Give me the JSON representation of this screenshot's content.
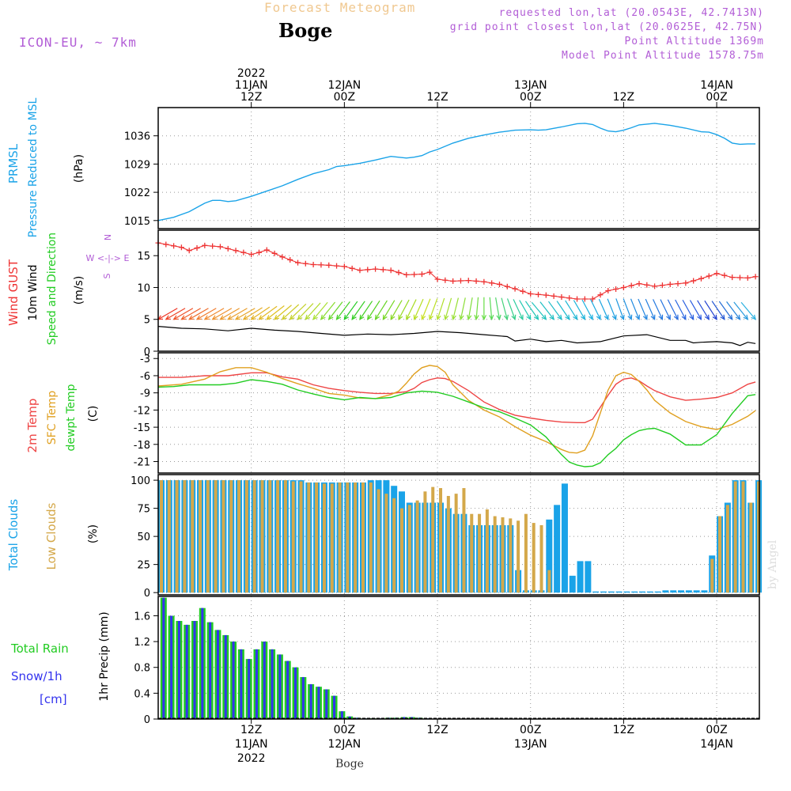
{
  "header": {
    "forecast_title": "Forecast Meteogram",
    "location": "Boge",
    "model": "ICON-EU, ~ 7km",
    "requested": "requested lon,lat (20.0543E, 42.7413N)",
    "grid_point": "grid point closest lon,lat (20.0625E, 42.75N)",
    "point_altitude": "Point Altitude 1369m",
    "model_altitude": "Model Point Altitude 1578.75m",
    "credit": "by Angel",
    "footer_location": "Boge"
  },
  "colors": {
    "pressure": "#1aa3e8",
    "gust": "#ee3333",
    "wind": "#000000",
    "temp": "#ee4444",
    "sfc": "#e0a020",
    "dewpt": "#22cc22",
    "cloud_total": "#1aa3e8",
    "cloud_low": "#d4a84a",
    "rain": "#22cc22",
    "snow": "#3333ee",
    "label_purple": "#b25dd6"
  },
  "time_axis": {
    "top_labels": [
      {
        "h": 12,
        "lines": [
          "2022",
          "11JAN",
          "12Z"
        ]
      },
      {
        "h": 24,
        "lines": [
          "12JAN",
          "00Z"
        ]
      },
      {
        "h": 36,
        "lines": [
          "12Z"
        ]
      },
      {
        "h": 48,
        "lines": [
          "13JAN",
          "00Z"
        ]
      },
      {
        "h": 60,
        "lines": [
          "12Z"
        ]
      },
      {
        "h": 72,
        "lines": [
          "14JAN",
          "00Z"
        ]
      }
    ],
    "bottom_labels": [
      {
        "h": 12,
        "lines": [
          "12Z",
          "11JAN",
          "2022"
        ]
      },
      {
        "h": 24,
        "lines": [
          "00Z",
          "12JAN"
        ]
      },
      {
        "h": 36,
        "lines": [
          "12Z"
        ]
      },
      {
        "h": 48,
        "lines": [
          "00Z",
          "13JAN"
        ]
      },
      {
        "h": 60,
        "lines": [
          "12Z"
        ]
      },
      {
        "h": 72,
        "lines": [
          "00Z",
          "14JAN"
        ]
      }
    ]
  },
  "panel_labels": {
    "pressure": {
      "l1": "PRMSL",
      "l2": "Pressure Reduced to MSL",
      "unit": "(hPa)"
    },
    "wind": {
      "l1": "Wind GUST",
      "l2": "10m Wind",
      "l3": "Speed and Direction",
      "unit": "(m/s)",
      "compass_n": "N",
      "compass_we": "W <-|-> E",
      "compass_s": "S"
    },
    "temp": {
      "l1": "2m Temp",
      "l2": "SFC Temp",
      "l3": "dewpt Temp",
      "unit": "(C)"
    },
    "clouds": {
      "l1": "Total Clouds",
      "l2": "Low Clouds",
      "unit": "(%)"
    },
    "precip": {
      "l1": "Total  Rain",
      "l2": "Snow/1h",
      "l3": "[cm]",
      "unit": "1hr Precip (mm)"
    }
  },
  "chart_data": [
    {
      "type": "line",
      "title": "PRMSL Pressure Reduced to MSL",
      "ylabel": "(hPa)",
      "x_unit": "hours from 2022-01-11 00Z",
      "ylim": [
        1013,
        1043
      ],
      "yticks": [
        1015,
        1022,
        1029,
        1036
      ],
      "grid": true,
      "series": [
        {
          "name": "PRMSL",
          "x": [
            0,
            2,
            4,
            6,
            7,
            8,
            9,
            10,
            12,
            14,
            16,
            18,
            20,
            22,
            23,
            24,
            26,
            28,
            30,
            32,
            33,
            34,
            35,
            36,
            38,
            40,
            42,
            44,
            46,
            48,
            49,
            50,
            52,
            54,
            55,
            56,
            57,
            58,
            59,
            60,
            61,
            62,
            64,
            66,
            68,
            70,
            71,
            72,
            73,
            74,
            75,
            76,
            77
          ],
          "values": [
            1015,
            1015.8,
            1017.2,
            1019.3,
            1020,
            1020,
            1019.7,
            1019.9,
            1021,
            1022.3,
            1023.6,
            1025.2,
            1026.6,
            1027.6,
            1028.4,
            1028.6,
            1029.2,
            1030,
            1030.9,
            1030.5,
            1030.7,
            1031.1,
            1032,
            1032.6,
            1034.2,
            1035.4,
            1036.2,
            1036.9,
            1037.4,
            1037.5,
            1037.4,
            1037.5,
            1038.2,
            1039,
            1039.1,
            1038.8,
            1037.9,
            1037.2,
            1037,
            1037.4,
            1038,
            1038.7,
            1039.1,
            1038.6,
            1037.9,
            1037,
            1036.9,
            1036.3,
            1035.4,
            1034.2,
            1033.9,
            1034,
            1034
          ]
        }
      ]
    },
    {
      "type": "line",
      "title": "Wind GUST / 10m Wind Speed and Direction",
      "ylabel": "(m/s)",
      "ylim": [
        0,
        19
      ],
      "yticks": [
        0,
        5,
        10,
        15
      ],
      "grid": true,
      "series": [
        {
          "name": "Wind GUST",
          "marker": "+",
          "x": [
            0,
            3,
            4,
            6,
            8,
            10,
            12,
            13,
            14,
            16,
            18,
            20,
            22,
            24,
            26,
            28,
            30,
            32,
            34,
            35,
            36,
            38,
            40,
            42,
            44,
            46,
            48,
            50,
            52,
            54,
            56,
            58,
            60,
            62,
            64,
            66,
            68,
            70,
            72,
            74,
            76,
            77
          ],
          "values": [
            17,
            16.3,
            15.8,
            16.6,
            16.4,
            15.8,
            15.2,
            15.5,
            15.9,
            14.8,
            13.9,
            13.6,
            13.5,
            13.3,
            12.7,
            12.9,
            12.7,
            12,
            12.1,
            12.4,
            11.3,
            11,
            11.1,
            10.9,
            10.5,
            9.8,
            9,
            8.8,
            8.5,
            8.2,
            8.2,
            9.5,
            10,
            10.6,
            10.2,
            10.5,
            10.7,
            11.4,
            12.2,
            11.6,
            11.5,
            11.7
          ]
        },
        {
          "name": "10m Wind",
          "x": [
            0,
            3,
            6,
            9,
            12,
            15,
            18,
            21,
            24,
            27,
            30,
            33,
            36,
            39,
            42,
            45,
            46,
            48,
            50,
            52,
            54,
            57,
            60,
            63,
            66,
            68,
            69,
            70,
            72,
            74,
            75,
            76,
            77
          ],
          "values": [
            3.9,
            3.6,
            3.5,
            3.2,
            3.6,
            3.3,
            3.1,
            2.8,
            2.5,
            2.7,
            2.6,
            2.8,
            3.1,
            2.9,
            2.6,
            2.3,
            1.6,
            1.9,
            1.5,
            1.7,
            1.3,
            1.5,
            2.4,
            2.6,
            1.7,
            1.7,
            1.3,
            1.4,
            1.5,
            1.3,
            0.9,
            1.4,
            1.2
          ]
        }
      ],
      "wind_barbs": {
        "speed_value": 5,
        "x_from": 0,
        "x_to": 77,
        "step_hours": 1,
        "angle_keyframes": [
          [
            0,
            60
          ],
          [
            10,
            60
          ],
          [
            20,
            40
          ],
          [
            30,
            30
          ],
          [
            40,
            10
          ],
          [
            50,
            -40
          ],
          [
            60,
            -20
          ],
          [
            70,
            -30
          ],
          [
            77,
            -40
          ]
        ],
        "color_keyframes": [
          [
            0,
            "#ee3322"
          ],
          [
            6,
            "#f08a30"
          ],
          [
            14,
            "#e0c020"
          ],
          [
            20,
            "#a8e030"
          ],
          [
            24,
            "#22cc22"
          ],
          [
            34,
            "#c8e020"
          ],
          [
            42,
            "#66dd44"
          ],
          [
            48,
            "#20c8b0"
          ],
          [
            56,
            "#1ab0e0"
          ],
          [
            70,
            "#2a5ae0"
          ],
          [
            72,
            "#2040d0"
          ],
          [
            77,
            "#2ab0e0"
          ]
        ]
      }
    },
    {
      "type": "line",
      "title": "2m Temp / SFC Temp / dewpt Temp",
      "ylabel": "(C)",
      "ylim": [
        -23,
        -2
      ],
      "yticks": [
        -3,
        -6,
        -9,
        -12,
        -15,
        -18,
        -21
      ],
      "grid": true,
      "series": [
        {
          "name": "2m Temp",
          "x": [
            0,
            3,
            6,
            9,
            12,
            14,
            16,
            18,
            20,
            22,
            24,
            26,
            28,
            30,
            32,
            33,
            34,
            35,
            36,
            37,
            38,
            40,
            42,
            44,
            46,
            48,
            50,
            52,
            54,
            55,
            56,
            57,
            58,
            59,
            60,
            61,
            62,
            63,
            64,
            66,
            68,
            70,
            72,
            74,
            76,
            77
          ],
          "values": [
            -6.3,
            -6.3,
            -6,
            -6,
            -5.5,
            -5.5,
            -6.2,
            -6.6,
            -7.6,
            -8.2,
            -8.6,
            -8.9,
            -9.1,
            -9.1,
            -8.8,
            -8.2,
            -7.2,
            -6.7,
            -6.4,
            -6.5,
            -7,
            -8.6,
            -10.6,
            -11.9,
            -12.9,
            -13.4,
            -13.8,
            -14.1,
            -14.2,
            -14.2,
            -13.6,
            -11.5,
            -9.4,
            -7.5,
            -6.6,
            -6.4,
            -6.9,
            -7.8,
            -8.6,
            -9.7,
            -10.3,
            -10.1,
            -9.8,
            -9,
            -7.5,
            -7.1
          ]
        },
        {
          "name": "SFC Temp",
          "x": [
            0,
            3,
            6,
            8,
            10,
            12,
            14,
            16,
            18,
            20,
            22,
            24,
            26,
            28,
            30,
            31,
            32,
            33,
            34,
            35,
            36,
            37,
            38,
            40,
            42,
            44,
            46,
            48,
            50,
            52,
            53,
            54,
            55,
            56,
            57,
            58,
            59,
            60,
            61,
            62,
            63,
            64,
            66,
            68,
            70,
            72,
            74,
            76,
            77
          ],
          "values": [
            -7.8,
            -7.5,
            -6.6,
            -5.3,
            -4.6,
            -4.6,
            -5.4,
            -6.5,
            -7.4,
            -8.2,
            -9.1,
            -9.4,
            -9.9,
            -10,
            -9.3,
            -8.7,
            -7.3,
            -5.7,
            -4.6,
            -4.2,
            -4.4,
            -5.4,
            -7.6,
            -10.3,
            -12,
            -13.2,
            -14.9,
            -16.4,
            -17.5,
            -18.9,
            -19.4,
            -19.5,
            -19,
            -16.5,
            -12.5,
            -8.5,
            -6,
            -5.4,
            -5.8,
            -7,
            -8.5,
            -10.3,
            -12.5,
            -14,
            -14.9,
            -15.4,
            -14.5,
            -13.1,
            -12.1
          ]
        },
        {
          "name": "dewpt Temp",
          "x": [
            0,
            2,
            4,
            6,
            8,
            10,
            12,
            14,
            16,
            18,
            20,
            22,
            24,
            26,
            28,
            30,
            32,
            34,
            36,
            38,
            40,
            42,
            44,
            46,
            48,
            50,
            51,
            52,
            53,
            54,
            55,
            56,
            57,
            58,
            59,
            60,
            61,
            62,
            63,
            64,
            66,
            68,
            70,
            72,
            74,
            76,
            77
          ],
          "values": [
            -8,
            -7.9,
            -7.6,
            -7.6,
            -7.6,
            -7.3,
            -6.7,
            -7,
            -7.5,
            -8.5,
            -9.2,
            -9.8,
            -10.2,
            -9.8,
            -10,
            -9.8,
            -9,
            -8.7,
            -8.9,
            -9.6,
            -10.6,
            -11.6,
            -12.3,
            -13.4,
            -14.6,
            -16.7,
            -18.3,
            -19.8,
            -21.1,
            -21.6,
            -21.9,
            -21.8,
            -21.2,
            -19.8,
            -18.7,
            -17.2,
            -16.3,
            -15.6,
            -15.3,
            -15.2,
            -16.2,
            -18.1,
            -18.1,
            -16.3,
            -12.6,
            -9.5,
            -9.3
          ]
        }
      ]
    },
    {
      "type": "bar",
      "title": "Total Clouds / Low Clouds",
      "ylabel": "(%)",
      "ylim": [
        -2,
        105
      ],
      "yticks": [
        0,
        25,
        50,
        75,
        100
      ],
      "grid": true,
      "x_start": 0,
      "x_step": 1,
      "series": [
        {
          "name": "Total Clouds",
          "values": [
            100,
            100,
            100,
            100,
            100,
            100,
            100,
            100,
            100,
            100,
            100,
            100,
            100,
            100,
            100,
            100,
            100,
            100,
            100,
            98,
            98,
            98,
            98,
            98,
            98,
            98,
            98,
            100,
            100,
            100,
            95,
            90,
            80,
            80,
            80,
            80,
            80,
            75,
            70,
            70,
            60,
            60,
            60,
            60,
            60,
            60,
            20,
            2,
            2,
            2,
            65,
            78,
            97,
            15,
            28,
            28,
            1,
            1,
            1,
            1,
            1,
            1,
            1,
            1,
            1,
            2,
            2,
            2,
            2,
            2,
            2,
            33,
            68,
            80,
            100,
            100,
            80,
            100
          ]
        },
        {
          "name": "Low Clouds",
          "values": [
            100,
            100,
            100,
            100,
            100,
            100,
            100,
            100,
            100,
            100,
            100,
            100,
            100,
            100,
            100,
            100,
            100,
            99,
            99,
            98,
            98,
            97,
            97,
            98,
            98,
            98,
            98,
            98,
            92,
            88,
            84,
            75,
            78,
            82,
            90,
            94,
            93,
            86,
            88,
            93,
            70,
            70,
            74,
            68,
            67,
            66,
            64,
            70,
            62,
            60,
            20,
            0,
            0,
            0,
            0,
            0,
            0,
            0,
            0,
            0,
            0,
            0,
            0,
            0,
            0,
            0,
            0,
            0,
            0,
            0,
            0,
            30,
            68,
            78,
            99,
            99,
            80,
            99
          ]
        }
      ]
    },
    {
      "type": "bar",
      "title": "Total Rain / Snow 1h",
      "ylabel": "1hr Precip (mm)",
      "ylim": [
        0,
        1.9
      ],
      "yticks": [
        0,
        0.4,
        0.8,
        1.2,
        1.6
      ],
      "grid": true,
      "x_start": 1,
      "x_step": 1,
      "series": [
        {
          "name": "Total Rain",
          "values": [
            1.88,
            1.6,
            1.52,
            1.46,
            1.52,
            1.72,
            1.5,
            1.38,
            1.3,
            1.2,
            1.08,
            0.93,
            1.08,
            1.2,
            1.08,
            1,
            0.9,
            0.8,
            0.65,
            0.54,
            0.5,
            0.46,
            0.36,
            0.12,
            0.04,
            0.02,
            0.01,
            0.01,
            0.01,
            0.02,
            0.02,
            0.03,
            0.03,
            0.02,
            0.01
          ]
        },
        {
          "name": "Snow/1h",
          "values": [
            1.88,
            1.6,
            1.52,
            1.46,
            1.52,
            1.72,
            1.5,
            1.38,
            1.3,
            1.2,
            1.08,
            0.93,
            1.08,
            1.2,
            1.08,
            1,
            0.9,
            0.8,
            0.65,
            0.54,
            0.5,
            0.46,
            0.36,
            0.12,
            0.04,
            0.02,
            0.01,
            0.01,
            0.01,
            0.02,
            0.02,
            0.03,
            0.03,
            0.02,
            0.01
          ]
        }
      ]
    }
  ]
}
